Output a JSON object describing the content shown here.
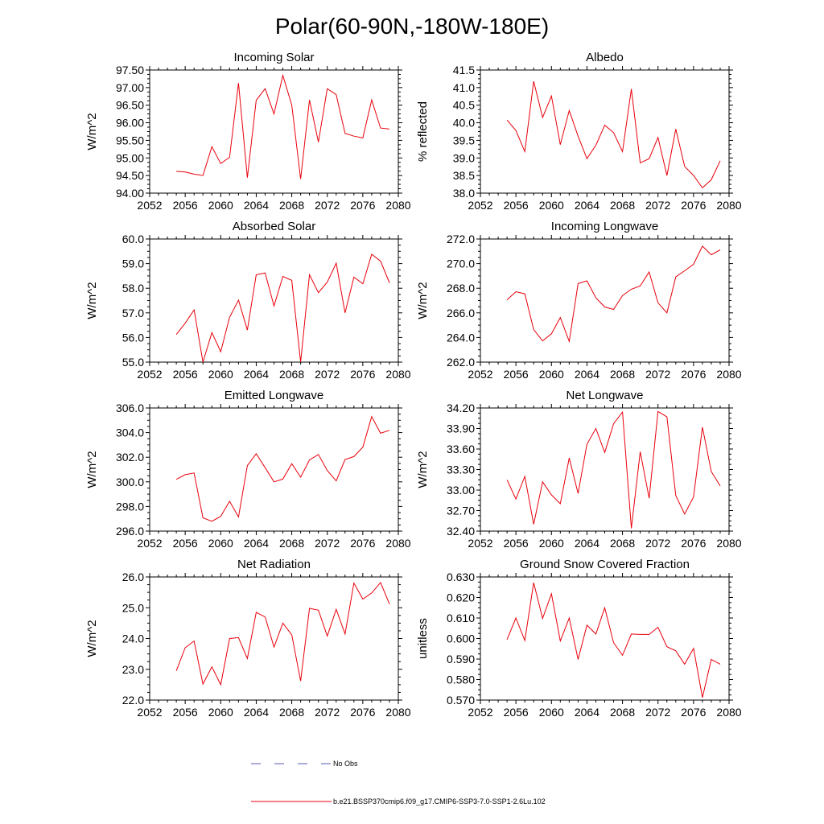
{
  "title": "Polar(60-90N,-180W-180E)",
  "series_color": "#e8000b",
  "legend": {
    "obs_label": "No Obs",
    "obs_color": "#5a5ab4",
    "model_label": "b.e21.BSSP370cmip6.f09_g17.CMIP6-SSP3-7.0-SSP1-2.6Lu.102",
    "model_color": "#e8000b"
  },
  "chart_data": [
    {
      "type": "line",
      "title": "Incoming Solar",
      "ylabel": "W/m^2",
      "xlim": [
        2052,
        2080
      ],
      "xticks": [
        "2052",
        "2056",
        "2060",
        "2064",
        "2068",
        "2072",
        "2076",
        "2080"
      ],
      "ylim": [
        94.0,
        97.5
      ],
      "yticks": [
        "94.00",
        "94.50",
        "95.00",
        "95.50",
        "96.00",
        "96.50",
        "97.00",
        "97.50"
      ],
      "x": [
        2055,
        2056,
        2057,
        2058,
        2059,
        2060,
        2061,
        2062,
        2063,
        2064,
        2065,
        2066,
        2067,
        2068,
        2069,
        2070,
        2071,
        2072,
        2073,
        2074,
        2075,
        2076,
        2077,
        2078,
        2079
      ],
      "y": [
        94.62,
        94.6,
        94.54,
        94.5,
        95.32,
        94.84,
        95.02,
        97.13,
        94.44,
        96.64,
        96.97,
        96.25,
        97.35,
        96.5,
        94.4,
        96.65,
        95.45,
        96.97,
        96.8,
        95.7,
        95.62,
        95.57,
        96.65,
        95.85,
        95.82
      ]
    },
    {
      "type": "line",
      "title": "Albedo",
      "ylabel": "% reflected",
      "xlim": [
        2052,
        2080
      ],
      "xticks": [
        "2052",
        "2056",
        "2060",
        "2064",
        "2068",
        "2072",
        "2076",
        "2080"
      ],
      "ylim": [
        38.0,
        41.5
      ],
      "yticks": [
        "38.0",
        "38.5",
        "39.0",
        "39.5",
        "40.0",
        "40.5",
        "41.0",
        "41.5"
      ],
      "x": [
        2055,
        2056,
        2057,
        2058,
        2059,
        2060,
        2061,
        2062,
        2063,
        2064,
        2065,
        2066,
        2067,
        2068,
        2069,
        2070,
        2071,
        2072,
        2073,
        2074,
        2075,
        2076,
        2077,
        2078,
        2079
      ],
      "y": [
        40.08,
        39.78,
        39.18,
        41.18,
        40.15,
        40.76,
        39.38,
        40.35,
        39.62,
        38.98,
        39.36,
        39.93,
        39.72,
        39.18,
        40.96,
        38.86,
        38.98,
        39.58,
        38.5,
        39.82,
        38.76,
        38.5,
        38.15,
        38.38,
        38.92
      ]
    },
    {
      "type": "line",
      "title": "Absorbed Solar",
      "ylabel": "W/m^2",
      "xlim": [
        2052,
        2080
      ],
      "xticks": [
        "2052",
        "2056",
        "2060",
        "2064",
        "2068",
        "2072",
        "2076",
        "2080"
      ],
      "ylim": [
        55.0,
        60.0
      ],
      "yticks": [
        "55.0",
        "56.0",
        "57.0",
        "58.0",
        "59.0",
        "60.0"
      ],
      "x": [
        2055,
        2056,
        2057,
        2058,
        2059,
        2060,
        2061,
        2062,
        2063,
        2064,
        2065,
        2066,
        2067,
        2068,
        2069,
        2070,
        2071,
        2072,
        2073,
        2074,
        2075,
        2076,
        2077,
        2078,
        2079
      ],
      "y": [
        56.12,
        56.58,
        57.12,
        55.0,
        56.2,
        55.42,
        56.82,
        57.52,
        56.3,
        58.55,
        58.62,
        57.28,
        58.48,
        58.32,
        55.0,
        58.55,
        57.82,
        58.25,
        59.02,
        57.0,
        58.45,
        58.18,
        59.38,
        59.1,
        58.22
      ]
    },
    {
      "type": "line",
      "title": "Incoming Longwave",
      "ylabel": "W/m^2",
      "xlim": [
        2052,
        2080
      ],
      "xticks": [
        "2052",
        "2056",
        "2060",
        "2064",
        "2068",
        "2072",
        "2076",
        "2080"
      ],
      "ylim": [
        262.0,
        272.0
      ],
      "yticks": [
        "262.0",
        "264.0",
        "266.0",
        "268.0",
        "270.0",
        "272.0"
      ],
      "x": [
        2055,
        2056,
        2057,
        2058,
        2059,
        2060,
        2061,
        2062,
        2063,
        2064,
        2065,
        2066,
        2067,
        2068,
        2069,
        2070,
        2071,
        2072,
        2073,
        2074,
        2075,
        2076,
        2077,
        2078,
        2079
      ],
      "y": [
        267.05,
        267.72,
        267.55,
        264.65,
        263.72,
        264.3,
        265.62,
        263.68,
        268.38,
        268.6,
        267.22,
        266.48,
        266.28,
        267.4,
        267.92,
        268.18,
        269.32,
        266.82,
        266.0,
        268.92,
        269.42,
        269.95,
        271.42,
        270.72,
        271.12
      ]
    },
    {
      "type": "line",
      "title": "Emitted Longwave",
      "ylabel": "W/m^2",
      "xlim": [
        2052,
        2080
      ],
      "xticks": [
        "2052",
        "2056",
        "2060",
        "2064",
        "2068",
        "2072",
        "2076",
        "2080"
      ],
      "ylim": [
        296.0,
        306.0
      ],
      "yticks": [
        "296.0",
        "298.0",
        "300.0",
        "302.0",
        "304.0",
        "306.0"
      ],
      "x": [
        2055,
        2056,
        2057,
        2058,
        2059,
        2060,
        2061,
        2062,
        2063,
        2064,
        2065,
        2066,
        2067,
        2068,
        2069,
        2070,
        2071,
        2072,
        2073,
        2074,
        2075,
        2076,
        2077,
        2078,
        2079
      ],
      "y": [
        300.2,
        300.58,
        300.72,
        297.08,
        296.8,
        297.2,
        298.42,
        297.15,
        301.32,
        302.28,
        301.15,
        300.0,
        300.22,
        301.48,
        300.38,
        301.78,
        302.22,
        300.92,
        300.08,
        301.82,
        302.05,
        302.82,
        305.3,
        303.95,
        304.18
      ]
    },
    {
      "type": "line",
      "title": "Net Longwave",
      "ylabel": "W/m^2",
      "xlim": [
        2052,
        2080
      ],
      "xticks": [
        "2052",
        "2056",
        "2060",
        "2064",
        "2068",
        "2072",
        "2076",
        "2080"
      ],
      "ylim": [
        32.4,
        34.2
      ],
      "yticks": [
        "32.40",
        "32.70",
        "33.00",
        "33.30",
        "33.60",
        "33.90",
        "34.20"
      ],
      "x": [
        2055,
        2056,
        2057,
        2058,
        2059,
        2060,
        2061,
        2062,
        2063,
        2064,
        2065,
        2066,
        2067,
        2068,
        2069,
        2070,
        2071,
        2072,
        2073,
        2074,
        2075,
        2076,
        2077,
        2078,
        2079
      ],
      "y": [
        33.15,
        32.87,
        33.2,
        32.5,
        33.12,
        32.93,
        32.8,
        33.47,
        32.95,
        33.67,
        33.9,
        33.55,
        33.97,
        34.14,
        32.44,
        33.56,
        32.88,
        34.15,
        34.07,
        32.92,
        32.65,
        32.9,
        33.92,
        33.27,
        33.06
      ]
    },
    {
      "type": "line",
      "title": "Net Radiation",
      "ylabel": "W/m^2",
      "xlim": [
        2052,
        2080
      ],
      "xticks": [
        "2052",
        "2056",
        "2060",
        "2064",
        "2068",
        "2072",
        "2076",
        "2080"
      ],
      "ylim": [
        22.0,
        26.0
      ],
      "yticks": [
        "22.0",
        "23.0",
        "24.0",
        "25.0",
        "26.0"
      ],
      "x": [
        2055,
        2056,
        2057,
        2058,
        2059,
        2060,
        2061,
        2062,
        2063,
        2064,
        2065,
        2066,
        2067,
        2068,
        2069,
        2070,
        2071,
        2072,
        2073,
        2074,
        2075,
        2076,
        2077,
        2078,
        2079
      ],
      "y": [
        22.95,
        23.7,
        23.92,
        22.52,
        23.08,
        22.5,
        24.0,
        24.03,
        23.35,
        24.85,
        24.7,
        23.72,
        24.5,
        24.12,
        22.62,
        24.98,
        24.92,
        24.08,
        24.95,
        24.15,
        25.8,
        25.28,
        25.48,
        25.82,
        25.12
      ]
    },
    {
      "type": "line",
      "title": "Ground Snow Covered Fraction",
      "ylabel": "unitless",
      "xlim": [
        2052,
        2080
      ],
      "xticks": [
        "2052",
        "2056",
        "2060",
        "2064",
        "2068",
        "2072",
        "2076",
        "2080"
      ],
      "ylim": [
        0.57,
        0.63
      ],
      "yticks": [
        "0.570",
        "0.580",
        "0.590",
        "0.600",
        "0.610",
        "0.620",
        "0.630"
      ],
      "x": [
        2055,
        2056,
        2057,
        2058,
        2059,
        2060,
        2061,
        2062,
        2063,
        2064,
        2065,
        2066,
        2067,
        2068,
        2069,
        2070,
        2071,
        2072,
        2073,
        2074,
        2075,
        2076,
        2077,
        2078,
        2079
      ],
      "y": [
        0.5995,
        0.61,
        0.599,
        0.6272,
        0.6098,
        0.6218,
        0.5988,
        0.61,
        0.5898,
        0.6065,
        0.6022,
        0.615,
        0.598,
        0.5918,
        0.6022,
        0.602,
        0.602,
        0.6055,
        0.596,
        0.594,
        0.5875,
        0.5952,
        0.5712,
        0.5898,
        0.5875
      ]
    }
  ]
}
